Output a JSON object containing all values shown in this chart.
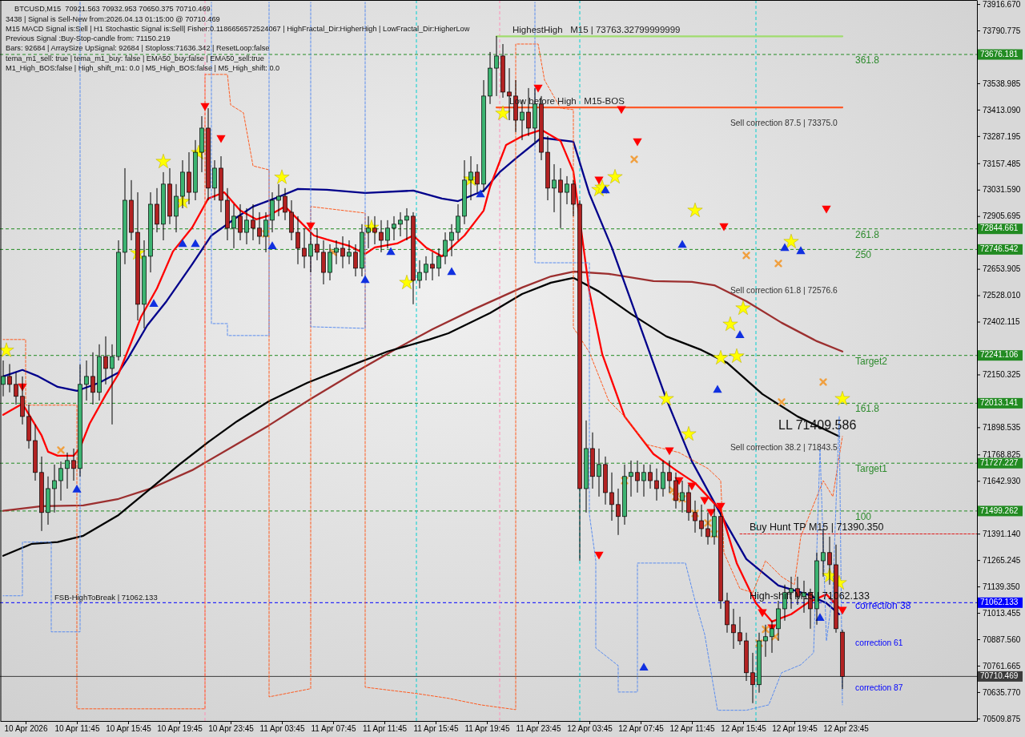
{
  "chart_data": {
    "type": "candlestick",
    "title": "BTCUSD,M15  70921.563 70932.953 70650.375 70710.469",
    "annotations": [
      "3438 | Signal is Sell-New from:2026.04.13 01:15:00 @ 70710.469",
      "M15 MACD Signal is:Sell | H1 Stochastic Signal is:Sell| Fisher:0.1186656572524067 | HighFractal_Dir:HigherHigh | LowFractal_Dir:HigherLow",
      "Previous Signal :Buy-Stop-candle from: 71150.219",
      "Bars: 92684 | ArraySize UpSignal: 92684 | Stoploss:71636.342 | ResetLoop:false",
      "tema_m1_sell: true | tema_m1_buy: false | EMA50_buy:false | EMA50_sell:true",
      "M1_High_BOS:false | High_shift_m1: 0.0 | M5_High_BOS:false | M5_High_shift: 0.0",
      {
        "text": "HighestHigh   M15 | 73763.32799999999",
        "x": "2026-04-11T21:45",
        "y": 73763
      },
      {
        "text": "Low before High   M15-BOS",
        "x": "2026-04-11T21:30",
        "y": 73424
      },
      "Sell correction 87.5 | 73375.0",
      "Sell correction 61.8 | 72576.6",
      "Sell correction 38.2 | 71843.5",
      "LL 71409.586",
      {
        "text": "Buy Hunt TP M15 | 71390.350",
        "x": "2026-04-12T16:15",
        "y": 71390
      },
      {
        "text": "High-shift M15 | 71062.133",
        "x": "2026-04-12T16:15",
        "y": 71062.133
      },
      {
        "text": "FSB-HighToBreak | 71062.133",
        "x": "2026-04-10T10:00",
        "y": 71062.133
      },
      "correction 61",
      "correction 87",
      {
        "text": "361.8",
        "x": "2026-04-13T00:30",
        "y": 73676.181
      },
      {
        "text": "261.8",
        "x": "2026-04-13T00:30",
        "y": 72844.661
      },
      {
        "text": "250",
        "x": "2026-04-13T00:30",
        "y": 72746.542
      },
      {
        "text": "Target2",
        "x": "2026-04-13T00:30",
        "y": 72241.106
      },
      {
        "text": "161.8",
        "x": "2026-04-13T00:30",
        "y": 72013.141
      },
      {
        "text": "Target1",
        "x": "2026-04-13T00:30",
        "y": 71727.227
      },
      {
        "text": "100",
        "x": "2026-04-13T00:30",
        "y": 71499.262
      },
      {
        "text": "correction 38",
        "x": "2026-04-13T00:30",
        "y": 71062.133
      }
    ],
    "x": [
      "2026-04-10T06:00",
      "2026-04-10T06:30",
      "2026-04-10T07:00",
      "2026-04-10T07:30",
      "2026-04-10T08:00",
      "2026-04-10T08:30",
      "2026-04-10T09:00",
      "2026-04-10T09:30",
      "2026-04-10T10:00",
      "2026-04-10T10:30",
      "2026-04-10T11:00",
      "2026-04-10T11:30",
      "2026-04-10T12:00",
      "2026-04-10T12:30",
      "2026-04-10T13:00",
      "2026-04-10T13:30",
      "2026-04-10T14:00",
      "2026-04-10T14:30",
      "2026-04-10T15:00",
      "2026-04-10T15:30",
      "2026-04-10T16:00",
      "2026-04-10T16:30",
      "2026-04-10T17:00",
      "2026-04-10T17:30",
      "2026-04-10T18:00",
      "2026-04-10T18:30",
      "2026-04-10T19:00",
      "2026-04-10T19:30",
      "2026-04-10T20:00",
      "2026-04-10T20:30",
      "2026-04-10T21:00",
      "2026-04-10T21:30",
      "2026-04-10T22:00",
      "2026-04-10T22:30",
      "2026-04-10T23:00",
      "2026-04-10T23:30",
      "2026-04-11T00:00",
      "2026-04-11T00:30",
      "2026-04-11T01:00",
      "2026-04-11T01:30",
      "2026-04-11T02:00",
      "2026-04-11T02:30",
      "2026-04-11T03:00",
      "2026-04-11T03:30",
      "2026-04-11T04:00",
      "2026-04-11T04:30",
      "2026-04-11T05:00",
      "2026-04-11T05:30",
      "2026-04-11T06:00",
      "2026-04-11T06:30",
      "2026-04-11T07:00",
      "2026-04-11T07:30",
      "2026-04-11T08:00",
      "2026-04-11T08:30",
      "2026-04-11T09:00",
      "2026-04-11T09:30",
      "2026-04-11T10:00",
      "2026-04-11T10:30",
      "2026-04-11T11:00",
      "2026-04-11T11:30",
      "2026-04-11T12:00",
      "2026-04-11T12:30",
      "2026-04-11T13:00",
      "2026-04-11T13:30",
      "2026-04-11T14:00",
      "2026-04-11T14:30",
      "2026-04-11T15:00",
      "2026-04-11T15:30",
      "2026-04-11T16:00",
      "2026-04-11T16:30",
      "2026-04-11T17:00",
      "2026-04-11T17:30",
      "2026-04-11T18:00",
      "2026-04-11T18:30",
      "2026-04-11T19:00",
      "2026-04-11T19:30",
      "2026-04-11T20:00",
      "2026-04-11T20:30",
      "2026-04-11T21:00",
      "2026-04-11T21:30",
      "2026-04-11T22:00",
      "2026-04-11T22:30",
      "2026-04-11T23:00",
      "2026-04-11T23:30",
      "2026-04-12T00:00",
      "2026-04-12T00:30",
      "2026-04-12T01:00",
      "2026-04-12T01:30",
      "2026-04-12T02:00",
      "2026-04-12T02:30",
      "2026-04-12T03:00",
      "2026-04-12T03:30",
      "2026-04-12T04:00",
      "2026-04-12T04:30",
      "2026-04-12T05:00",
      "2026-04-12T05:30",
      "2026-04-12T06:00",
      "2026-04-12T06:30",
      "2026-04-12T07:00",
      "2026-04-12T07:30",
      "2026-04-12T08:00",
      "2026-04-12T08:30",
      "2026-04-12T09:00",
      "2026-04-12T09:30",
      "2026-04-12T10:00",
      "2026-04-12T10:30",
      "2026-04-12T11:00",
      "2026-04-12T11:30",
      "2026-04-12T12:00",
      "2026-04-12T12:30",
      "2026-04-12T13:00",
      "2026-04-12T13:30",
      "2026-04-12T14:00",
      "2026-04-12T14:30",
      "2026-04-12T15:00",
      "2026-04-12T15:30",
      "2026-04-12T16:00",
      "2026-04-12T16:30",
      "2026-04-12T17:00",
      "2026-04-12T17:30",
      "2026-04-12T18:00",
      "2026-04-12T18:30",
      "2026-04-12T19:00",
      "2026-04-12T19:30",
      "2026-04-12T20:00",
      "2026-04-12T20:30",
      "2026-04-12T21:00",
      "2026-04-12T21:30",
      "2026-04-12T22:00",
      "2026-04-12T22:30",
      "2026-04-12T23:00",
      "2026-04-12T23:30"
    ],
    "ohlc": [
      [
        72103,
        72217,
        72046,
        72141
      ],
      [
        72141,
        72200,
        72065,
        72103
      ],
      [
        72103,
        72160,
        72007,
        72046
      ],
      [
        72046,
        72141,
        71912,
        71950
      ],
      [
        71950,
        72007,
        71797,
        71835
      ],
      [
        71835,
        71912,
        71644,
        71683
      ],
      [
        71683,
        71759,
        71404,
        71492
      ],
      [
        71492,
        71664,
        71434,
        71606
      ],
      [
        71606,
        71721,
        71492,
        71644
      ],
      [
        71644,
        71735,
        71549,
        71702
      ],
      [
        71702,
        71778,
        71606,
        71740
      ],
      [
        71740,
        71797,
        71644,
        71702
      ],
      [
        71702,
        72198,
        71664,
        72103
      ],
      [
        72103,
        72217,
        72026,
        72141
      ],
      [
        72141,
        72256,
        72007,
        72065
      ],
      [
        72065,
        72294,
        72026,
        72236
      ],
      [
        72236,
        72332,
        72103,
        72179
      ],
      [
        72179,
        72294,
        71912,
        72236
      ],
      [
        72236,
        72790,
        72217,
        72733
      ],
      [
        72733,
        73134,
        72676,
        72981
      ],
      [
        72981,
        73077,
        72790,
        72828
      ],
      [
        72828,
        73019,
        72408,
        72485
      ],
      [
        72485,
        72790,
        72370,
        72714
      ],
      [
        72714,
        73019,
        72637,
        72962
      ],
      [
        72962,
        73039,
        72828,
        72867
      ],
      [
        72867,
        73115,
        72790,
        73058
      ],
      [
        73058,
        73134,
        72867,
        72905
      ],
      [
        72905,
        73058,
        72828,
        73000
      ],
      [
        73000,
        73172,
        72943,
        73115
      ],
      [
        73115,
        73210,
        72962,
        73019
      ],
      [
        73019,
        73268,
        72981,
        73210
      ],
      [
        73210,
        73382,
        73115,
        73325
      ],
      [
        73325,
        73420,
        72981,
        73039
      ],
      [
        73039,
        73172,
        72981,
        73134
      ],
      [
        73134,
        73191,
        72924,
        72981
      ],
      [
        72981,
        73039,
        72790,
        72848
      ],
      [
        72848,
        72962,
        72752,
        72905
      ],
      [
        72905,
        72962,
        72790,
        72828
      ],
      [
        72828,
        72943,
        72771,
        72886
      ],
      [
        72886,
        72962,
        72790,
        72848
      ],
      [
        72848,
        72924,
        72771,
        72809
      ],
      [
        72809,
        72924,
        72733,
        72886
      ],
      [
        72886,
        73019,
        72828,
        72981
      ],
      [
        72981,
        73058,
        72905,
        73000
      ],
      [
        73000,
        73039,
        72886,
        72924
      ],
      [
        72924,
        72981,
        72790,
        72828
      ],
      [
        72828,
        72905,
        72676,
        72752
      ],
      [
        72752,
        72848,
        72657,
        72714
      ],
      [
        72714,
        72828,
        72637,
        72771
      ],
      [
        72771,
        72848,
        72695,
        72733
      ],
      [
        72733,
        72790,
        72580,
        72637
      ],
      [
        72637,
        72771,
        72599,
        72733
      ],
      [
        72733,
        72790,
        72676,
        72752
      ],
      [
        72752,
        72809,
        72657,
        72714
      ],
      [
        72714,
        72790,
        72676,
        72733
      ],
      [
        72733,
        72771,
        72618,
        72657
      ],
      [
        72657,
        72867,
        72618,
        72828
      ],
      [
        72828,
        72905,
        72752,
        72848
      ],
      [
        72848,
        72905,
        72771,
        72828
      ],
      [
        72828,
        72886,
        72733,
        72790
      ],
      [
        72790,
        72886,
        72752,
        72848
      ],
      [
        72848,
        72905,
        72790,
        72867
      ],
      [
        72867,
        72924,
        72809,
        72886
      ],
      [
        72886,
        72943,
        72790,
        72905
      ],
      [
        72905,
        72924,
        72485,
        72599
      ],
      [
        72599,
        72695,
        72561,
        72637
      ],
      [
        72637,
        72714,
        72599,
        72676
      ],
      [
        72676,
        72733,
        72599,
        72657
      ],
      [
        72657,
        72752,
        72618,
        72714
      ],
      [
        72714,
        72828,
        72676,
        72790
      ],
      [
        72790,
        72867,
        72714,
        72828
      ],
      [
        72828,
        72962,
        72790,
        72905
      ],
      [
        72905,
        73172,
        72867,
        73077
      ],
      [
        73077,
        73191,
        72981,
        73115
      ],
      [
        73115,
        73153,
        73019,
        73058
      ],
      [
        73058,
        73554,
        73019,
        73478
      ],
      [
        73478,
        73688,
        73440,
        73611
      ],
      [
        73611,
        73764,
        73478,
        73669
      ],
      [
        73669,
        73726,
        73470,
        73497
      ],
      [
        73497,
        73611,
        73363,
        73478
      ],
      [
        73478,
        73554,
        73306,
        73363
      ],
      [
        73363,
        73459,
        73268,
        73401
      ],
      [
        73401,
        73516,
        73287,
        73325
      ],
      [
        73325,
        73516,
        73249,
        73440
      ],
      [
        73440,
        73478,
        73172,
        73210
      ],
      [
        73210,
        73287,
        72981,
        73039
      ],
      [
        73039,
        73153,
        72924,
        73077
      ],
      [
        73077,
        73134,
        72848,
        73019
      ],
      [
        73019,
        73096,
        72962,
        73058
      ],
      [
        73058,
        73077,
        72905,
        72962
      ],
      [
        72962,
        72981,
        71262,
        71606
      ],
      [
        71606,
        71931,
        71492,
        71797
      ],
      [
        71797,
        71874,
        71606,
        71664
      ],
      [
        71664,
        71797,
        71568,
        71721
      ],
      [
        71721,
        71759,
        71530,
        71587
      ],
      [
        71587,
        71683,
        71453,
        71530
      ],
      [
        71530,
        71606,
        71385,
        71473
      ],
      [
        71473,
        71721,
        71434,
        71664
      ],
      [
        71664,
        71740,
        71568,
        71683
      ],
      [
        71683,
        71740,
        71587,
        71644
      ],
      [
        71644,
        71721,
        71568,
        71683
      ],
      [
        71683,
        71721,
        71606,
        71644
      ],
      [
        71644,
        71702,
        71549,
        71606
      ],
      [
        71606,
        71740,
        71568,
        71683
      ],
      [
        71683,
        71740,
        71587,
        71644
      ],
      [
        71644,
        71683,
        71511,
        71549
      ],
      [
        71549,
        71644,
        71492,
        71587
      ],
      [
        71587,
        71625,
        71453,
        71492
      ],
      [
        71492,
        71549,
        71396,
        71453
      ],
      [
        71453,
        71530,
        71377,
        71415
      ],
      [
        71415,
        71492,
        71339,
        71377
      ],
      [
        71377,
        71530,
        71339,
        71473
      ],
      [
        71473,
        71492,
        71033,
        71071
      ],
      [
        71071,
        71110,
        70919,
        70957
      ],
      [
        70957,
        71033,
        70842,
        70919
      ],
      [
        70919,
        70995,
        70861,
        70880
      ],
      [
        70880,
        70919,
        70689,
        70728
      ],
      [
        70728,
        70823,
        70583,
        70671
      ],
      [
        70671,
        70919,
        70633,
        70880
      ],
      [
        70880,
        70957,
        70804,
        70900
      ],
      [
        70900,
        70976,
        70823,
        70938
      ],
      [
        70938,
        71071,
        70880,
        71033
      ],
      [
        71033,
        71148,
        70976,
        71110
      ],
      [
        71110,
        71186,
        71033,
        71129
      ],
      [
        71129,
        71186,
        71052,
        71091
      ],
      [
        71091,
        71167,
        71014,
        71110
      ],
      [
        71110,
        71129,
        70938,
        71033
      ],
      [
        71033,
        71301,
        70957,
        71262
      ],
      [
        71262,
        71415,
        71186,
        71301
      ],
      [
        71301,
        71377,
        71148,
        71243
      ],
      [
        71243,
        71339,
        70919,
        70938
      ],
      [
        70921.563,
        70932.953,
        70650.375,
        70710.469
      ]
    ],
    "colors": [
      "#3cb371",
      "#b22222",
      "#b22222",
      "#b22222",
      "#b22222",
      "#b22222",
      "#b22222",
      "#3cb371",
      "#3cb371",
      "#3cb371",
      "#3cb371",
      "#b22222",
      "#3cb371",
      "#3cb371",
      "#b22222",
      "#3cb371",
      "#b22222",
      "#3cb371",
      "#3cb371",
      "#3cb371",
      "#b22222",
      "#b22222",
      "#3cb371",
      "#3cb371",
      "#b22222",
      "#3cb371",
      "#b22222",
      "#3cb371",
      "#3cb371",
      "#b22222",
      "#3cb371",
      "#3cb371",
      "#b22222",
      "#3cb371",
      "#b22222",
      "#b22222",
      "#3cb371",
      "#b22222",
      "#3cb371",
      "#b22222",
      "#b22222",
      "#3cb371",
      "#3cb371",
      "#3cb371",
      "#b22222",
      "#b22222",
      "#b22222",
      "#b22222",
      "#3cb371",
      "#b22222",
      "#b22222",
      "#3cb371",
      "#3cb371",
      "#b22222",
      "#3cb371",
      "#b22222",
      "#3cb371",
      "#3cb371",
      "#b22222",
      "#b22222",
      "#3cb371",
      "#3cb371",
      "#3cb371",
      "#3cb371",
      "#b22222",
      "#3cb371",
      "#3cb371",
      "#b22222",
      "#3cb371",
      "#3cb371",
      "#3cb371",
      "#3cb371",
      "#3cb371",
      "#3cb371",
      "#b22222",
      "#3cb371",
      "#3cb371",
      "#3cb371",
      "#b22222",
      "#b22222",
      "#b22222",
      "#3cb371",
      "#b22222",
      "#3cb371",
      "#b22222",
      "#b22222",
      "#3cb371",
      "#b22222",
      "#3cb371",
      "#b22222",
      "#b22222",
      "#3cb371",
      "#b22222",
      "#3cb371",
      "#b22222",
      "#b22222",
      "#b22222",
      "#3cb371",
      "#3cb371",
      "#b22222",
      "#3cb371",
      "#b22222",
      "#b22222",
      "#3cb371",
      "#b22222",
      "#b22222",
      "#3cb371",
      "#b22222",
      "#b22222",
      "#b22222",
      "#b22222",
      "#3cb371",
      "#b22222",
      "#b22222",
      "#b22222",
      "#b22222",
      "#b22222",
      "#b22222",
      "#3cb371",
      "#3cb371",
      "#3cb371",
      "#3cb371",
      "#3cb371",
      "#3cb371",
      "#b22222",
      "#3cb371",
      "#b22222",
      "#3cb371",
      "#3cb371",
      "#b22222",
      "#b22222",
      "#b22222"
    ],
    "series": [
      {
        "type": "line",
        "color": "#9c2f2f",
        "line_style": "solid",
        "x": [
          "2026-04-10T06:00",
          "2026-04-10T09:00",
          "2026-04-10T12:15",
          "2026-04-10T15:00",
          "2026-04-10T17:30",
          "2026-04-10T20:45",
          "2026-04-10T23:45",
          "2026-04-11T02:45",
          "2026-04-11T06:00",
          "2026-04-11T09:15",
          "2026-04-11T12:30",
          "2026-04-11T15:30",
          "2026-04-11T18:45",
          "2026-04-11T22:30",
          "2026-04-12T00:45",
          "2026-04-12T02:30",
          "2026-04-12T05:15",
          "2026-04-12T08:45",
          "2026-04-12T11:45",
          "2026-04-12T13:30",
          "2026-04-12T16:00",
          "2026-04-12T18:45",
          "2026-04-12T21:30",
          "2026-04-12T23:30"
        ],
        "values": [
          71500,
          71522,
          71526,
          71557,
          71606,
          71694,
          71801,
          71908,
          72034,
          72153,
          72267,
          72366,
          72462,
          72565,
          72618,
          72641,
          72630,
          72596,
          72592,
          72576,
          72500,
          72397,
          72309,
          72260
        ]
      },
      {
        "type": "line",
        "color": "#000000",
        "line_style": "solid",
        "x": [
          "2026-04-10T06:00",
          "2026-04-10T08:15",
          "2026-04-10T10:15",
          "2026-04-10T12:15",
          "2026-04-10T15:00",
          "2026-04-10T17:30",
          "2026-04-10T19:45",
          "2026-04-10T22:00",
          "2026-04-11T00:15",
          "2026-04-11T02:45",
          "2026-04-11T05:45",
          "2026-04-11T09:00",
          "2026-04-11T12:00",
          "2026-04-11T15:15",
          "2026-04-11T16:45",
          "2026-04-11T20:00",
          "2026-04-11T22:30",
          "2026-04-12T00:45",
          "2026-04-12T02:30",
          "2026-04-12T04:30",
          "2026-04-12T07:00",
          "2026-04-12T09:45",
          "2026-04-12T12:30",
          "2026-04-12T14:30",
          "2026-04-12T17:15",
          "2026-04-12T20:00",
          "2026-04-12T23:15"
        ],
        "values": [
          71286,
          71343,
          71351,
          71381,
          71480,
          71606,
          71721,
          71828,
          71927,
          72023,
          72111,
          72190,
          72260,
          72317,
          72347,
          72443,
          72534,
          72588,
          72611,
          72546,
          72439,
          72332,
          72267,
          72206,
          72057,
          71950,
          71855
        ]
      },
      {
        "type": "line",
        "color": "#00008b",
        "line_style": "solid",
        "x": [
          "2026-04-10T06:00",
          "2026-04-10T07:30",
          "2026-04-10T08:45",
          "2026-04-10T10:15",
          "2026-04-10T11:45",
          "2026-04-10T13:30",
          "2026-04-10T15:00",
          "2026-04-10T15:45",
          "2026-04-10T17:15",
          "2026-04-10T18:45",
          "2026-04-10T20:45",
          "2026-04-10T22:15",
          "2026-04-11T00:00",
          "2026-04-11T01:30",
          "2026-04-11T03:30",
          "2026-04-11T05:00",
          "2026-04-11T07:15",
          "2026-04-11T10:15",
          "2026-04-11T14:00",
          "2026-04-11T16:15",
          "2026-04-11T17:30",
          "2026-04-11T19:30",
          "2026-04-11T20:45",
          "2026-04-11T22:00",
          "2026-04-12T00:00",
          "2026-04-12T02:30",
          "2026-04-12T03:45",
          "2026-04-12T05:30",
          "2026-04-12T07:45",
          "2026-04-12T09:45",
          "2026-04-12T11:45",
          "2026-04-12T14:00",
          "2026-04-12T16:00",
          "2026-04-12T18:30",
          "2026-04-12T20:45",
          "2026-04-12T22:15",
          "2026-04-12T23:15"
        ],
        "values": [
          72141,
          72172,
          72141,
          72091,
          72072,
          72111,
          72160,
          72229,
          72385,
          72500,
          72676,
          72813,
          72890,
          72951,
          72997,
          73035,
          73031,
          73016,
          73027,
          72989,
          72977,
          73027,
          73115,
          73180,
          73279,
          73260,
          73012,
          72756,
          72374,
          72034,
          71736,
          71484,
          71270,
          71144,
          71102,
          71060,
          71007
        ]
      },
      {
        "type": "line",
        "color": "#ff0000",
        "line_style": "solid",
        "x": [
          "2026-04-10T06:00",
          "2026-04-10T07:30",
          "2026-04-10T08:15",
          "2026-04-10T09:00",
          "2026-04-10T09:30",
          "2026-04-10T10:15",
          "2026-04-10T11:30",
          "2026-04-10T12:00",
          "2026-04-10T12:45",
          "2026-04-10T14:00",
          "2026-04-10T15:00",
          "2026-04-10T16:00",
          "2026-04-10T16:45",
          "2026-04-10T18:00",
          "2026-04-10T19:15",
          "2026-04-10T20:45",
          "2026-04-10T22:00",
          "2026-04-10T23:15",
          "2026-04-11T00:30",
          "2026-04-11T01:45",
          "2026-04-11T02:45",
          "2026-04-11T04:00",
          "2026-04-11T05:00",
          "2026-04-11T06:15",
          "2026-04-11T07:15",
          "2026-04-11T09:00",
          "2026-04-11T10:15",
          "2026-04-11T11:00",
          "2026-04-11T12:45",
          "2026-04-11T14:00",
          "2026-04-11T15:00",
          "2026-04-11T16:15",
          "2026-04-11T18:00",
          "2026-04-11T19:30",
          "2026-04-11T20:00",
          "2026-04-11T21:15",
          "2026-04-11T22:30",
          "2026-04-12T00:00",
          "2026-04-12T01:30",
          "2026-04-12T02:30",
          "2026-04-12T03:45",
          "2026-04-12T04:45",
          "2026-04-12T06:30",
          "2026-04-12T08:45",
          "2026-04-12T10:30",
          "2026-04-12T12:00",
          "2026-04-12T14:00",
          "2026-04-12T15:15",
          "2026-04-12T16:45",
          "2026-04-12T18:00",
          "2026-04-12T19:30",
          "2026-04-12T20:45",
          "2026-04-12T22:15",
          "2026-04-12T23:15"
        ],
        "values": [
          71958,
          72011,
          71935,
          71859,
          71782,
          71763,
          71763,
          71801,
          71916,
          72053,
          72153,
          72305,
          72424,
          72561,
          72737,
          72851,
          72989,
          73019,
          72932,
          72890,
          72909,
          72951,
          72890,
          72813,
          72794,
          72764,
          72725,
          72756,
          72775,
          72813,
          72756,
          72714,
          72813,
          72932,
          73046,
          73245,
          73287,
          73317,
          73264,
          73119,
          72546,
          72248,
          71950,
          71771,
          71694,
          71633,
          71503,
          71251,
          71060,
          70972,
          71007,
          71060,
          71102,
          71037
        ]
      },
      {
        "type": "line",
        "color": "#ff5a1f",
        "line_style": "dashed",
        "x": [
          "2026-04-10T06:00",
          "2026-04-10T07:45",
          "2026-04-10T07:45",
          "2026-04-10T11:45",
          "2026-04-10T11:45",
          "2026-04-10T21:45",
          "2026-04-10T21:45",
          "2026-04-10T23:30",
          "2026-04-10T23:45",
          "2026-04-11T00:45",
          "2026-04-11T01:30",
          "2026-04-11T02:45",
          "2026-04-11T02:45",
          "2026-04-11T06:00",
          "2026-04-11T06:00",
          "2026-04-11T10:15",
          "2026-04-11T10:15",
          "2026-04-11T14:15",
          "2026-04-11T16:45",
          "2026-04-11T19:15",
          "2026-04-11T22:00",
          "2026-04-11T22:00",
          "2026-04-11T23:45",
          "2026-04-12T00:15",
          "2026-04-12T01:30",
          "2026-04-12T02:30",
          "2026-04-12T02:30",
          "2026-04-12T03:45",
          "2026-04-12T05:15",
          "2026-04-12T06:30",
          "2026-04-12T08:15",
          "2026-04-12T10:45",
          "2026-04-12T13:00",
          "2026-04-12T14:00",
          "2026-04-12T14:15",
          "2026-04-12T15:30",
          "2026-04-12T16:30",
          "2026-04-12T17:30",
          "2026-04-12T18:45",
          "2026-04-12T19:45",
          "2026-04-12T20:15",
          "2026-04-12T22:00",
          "2026-04-12T22:45",
          "2026-04-12T23:30"
        ],
        "values": [
          72317,
          72317,
          72004,
          72004,
          70556,
          70556,
          73581,
          73581,
          73436,
          73398,
          73145,
          73126,
          70613,
          70652,
          72951,
          72920,
          70659,
          70629,
          70606,
          70575,
          70552,
          73726,
          73726,
          73554,
          73420,
          73413,
          72374,
          72256,
          72026,
          71950,
          71816,
          71778,
          71702,
          71644,
          71301,
          71129,
          71110,
          71262,
          71186,
          71148,
          71377,
          71644,
          71568,
          71855
        ]
      },
      {
        "type": "line",
        "color": "#5b8def",
        "line_style": "dashed",
        "x": [
          "2026-04-10T06:00",
          "2026-04-10T07:30",
          "2026-04-10T07:30",
          "2026-04-10T09:45",
          "2026-04-10T09:45",
          "2026-04-10T12:00",
          "2026-04-10T12:00",
          "2026-04-10T17:00",
          "2026-04-10T22:15",
          "2026-04-10T22:15",
          "2026-04-10T23:30",
          "2026-04-10T23:30",
          "2026-04-11T02:45",
          "2026-04-11T02:45",
          "2026-04-11T04:30",
          "2026-04-11T06:00",
          "2026-04-11T06:00",
          "2026-04-11T10:15",
          "2026-04-11T10:15",
          "2026-04-11T16:00",
          "2026-04-11T23:30",
          "2026-04-11T23:30",
          "2026-04-12T03:45",
          "2026-04-12T03:45",
          "2026-04-12T04:15",
          "2026-04-12T04:15",
          "2026-04-12T06:00",
          "2026-04-12T06:00",
          "2026-04-12T07:30",
          "2026-04-12T07:30",
          "2026-04-12T11:15",
          "2026-04-12T12:00",
          "2026-04-12T12:45",
          "2026-04-12T13:45",
          "2026-04-12T16:00",
          "2026-04-12T17:45",
          "2026-04-12T18:45",
          "2026-04-12T20:15",
          "2026-04-12T21:15",
          "2026-04-12T21:45",
          "2026-04-12T22:15",
          "2026-04-12T22:45",
          "2026-04-12T23:15",
          "2026-04-12T23:30"
        ],
        "values": [
          71095,
          71095,
          71351,
          71351,
          70923,
          70923,
          73925,
          null,
          73925,
          72393,
          72393,
          72336,
          72336,
          73925,
          null,
          73925,
          72378,
          72370,
          73925,
          null,
          73925,
          72683,
          72683,
          71484,
          71262,
          70846,
          70762,
          70636,
          70636,
          71251,
          71251,
          71071,
          70911,
          70549,
          70549,
          70575,
          70728,
          70766,
          70823,
          71797,
          70880,
          71110,
          71950,
          70575
        ]
      },
      {
        "type": "line",
        "color": "#a0dc6e",
        "line_style": "solid",
        "x": [
          "2026-04-11T20:30",
          "2026-04-12T23:30"
        ],
        "values": [
          73763,
          73763
        ]
      },
      {
        "type": "line",
        "color": "#ff5a2a",
        "line_style": "solid",
        "x": [
          "2026-04-11T20:30",
          "2026-04-12T23:30"
        ],
        "values": [
          73424,
          73424
        ]
      },
      {
        "type": "line",
        "color": "#e02020",
        "line_style": "dashed",
        "x": [
          "2026-04-12T15:30",
          "2026-04-13T10:00"
        ],
        "values": [
          71390,
          71390
        ]
      },
      {
        "type": "scatter",
        "color": "#ffff00",
        "marker": "star",
        "x": [
          "2026-04-10T06:15",
          "2026-04-10T16:30",
          "2026-04-10T18:30",
          "2026-04-10T20:00",
          "2026-04-10T21:15",
          "2026-04-11T03:45",
          "2026-04-11T10:45",
          "2026-04-11T13:30",
          "2026-04-11T18:30",
          "2026-04-11T21:00",
          "2026-04-12T04:30",
          "2026-04-12T04:45",
          "2026-04-12T05:45",
          "2026-04-12T09:45",
          "2026-04-12T11:30",
          "2026-04-12T12:00",
          "2026-04-12T14:00",
          "2026-04-12T14:45",
          "2026-04-12T15:15",
          "2026-04-12T15:45",
          "2026-04-12T19:30",
          "2026-04-12T22:30",
          "2026-04-12T23:15",
          "2026-04-12T23:30"
        ],
        "values": [
          72265,
          72729,
          73165,
          72974,
          73207,
          73090,
          72851,
          72588,
          73081,
          73395,
          73031,
          73042,
          73092,
          72034,
          71866,
          72932,
          72229,
          72389,
          72237,
          72466,
          72783,
          71190,
          71156,
          72034
        ]
      },
      {
        "type": "scatter",
        "color": "#1030e0",
        "marker": "triangle",
        "x": [
          "2026-04-10T11:45",
          "2026-04-10T17:45",
          "2026-04-10T20:00",
          "2026-04-10T21:00",
          "2026-04-11T03:00",
          "2026-04-11T10:15",
          "2026-04-11T12:15",
          "2026-04-11T17:00",
          "2026-04-11T19:15",
          "2026-04-12T05:00",
          "2026-04-12T08:00",
          "2026-04-12T11:00",
          "2026-04-12T13:45",
          "2026-04-12T15:30",
          "2026-04-12T19:00",
          "2026-04-12T20:15",
          "2026-04-12T21:45"
        ],
        "values": [
          71600,
          72485,
          72771,
          72771,
          72760,
          72599,
          72733,
          72637,
          73008,
          73027,
          70751,
          72767,
          72076,
          72336,
          72752,
          72737,
          70988
        ]
      },
      {
        "type": "scatter",
        "color": "#ff0000",
        "marker": "triangle",
        "x": [
          "2026-04-10T07:30",
          "2026-04-10T21:45",
          "2026-04-10T23:00",
          "2026-04-11T06:00",
          "2026-04-11T23:45",
          "2026-04-12T04:30",
          "2026-04-12T04:30",
          "2026-04-12T06:15",
          "2026-04-12T07:30",
          "2026-04-12T10:00",
          "2026-04-12T10:45",
          "2026-04-12T11:45",
          "2026-04-12T12:45",
          "2026-04-12T13:15",
          "2026-04-12T14:00",
          "2026-04-12T14:15",
          "2026-04-12T17:15",
          "2026-04-12T18:00",
          "2026-04-12T22:15",
          "2026-04-12T23:30"
        ],
        "values": [
          72095,
          73432,
          73279,
          72863,
          73520,
          73081,
          71293,
          73417,
          73264,
          71790,
          71648,
          71622,
          71553,
          71496,
          71526,
          72859,
          71018,
          70946,
          72943,
          71030
        ]
      },
      {
        "type": "scatter",
        "color": "#f0a040",
        "marker": "cross",
        "x": [
          "2026-04-10T10:30",
          "2026-04-11T02:30",
          "2026-04-11T07:45",
          "2026-04-12T06:30",
          "2026-04-12T07:15",
          "2026-04-12T10:15",
          "2026-04-12T10:30",
          "2026-04-12T11:00",
          "2026-04-12T12:00",
          "2026-04-12T13:00",
          "2026-04-12T13:30",
          "2026-04-12T16:00",
          "2026-04-12T17:00",
          "2026-04-12T17:30",
          "2026-04-12T18:15",
          "2026-04-12T18:30",
          "2026-04-12T18:45",
          "2026-04-12T22:00"
        ],
        "values": [
          71790,
          72821,
          72733,
          71644,
          73176,
          71599,
          71568,
          71557,
          71488,
          71442,
          71389,
          72718,
          70869,
          70935,
          70900,
          72680,
          72019,
          72114
        ]
      }
    ],
    "xlim": [
      "2026-04-10T05:45",
      "2026-04-13T10:00"
    ],
    "xticks": [
      {
        "value": "2026-04-10T07:45",
        "label": "10 Apr 2026"
      },
      {
        "value": "2026-04-10T11:45",
        "label": "10 Apr 11:45"
      },
      {
        "value": "2026-04-10T15:45",
        "label": "10 Apr 15:45"
      },
      {
        "value": "2026-04-10T19:45",
        "label": "10 Apr 19:45"
      },
      {
        "value": "2026-04-10T23:45",
        "label": "10 Apr 23:45"
      },
      {
        "value": "2026-04-11T03:45",
        "label": "11 Apr 03:45"
      },
      {
        "value": "2026-04-11T07:45",
        "label": "11 Apr 07:45"
      },
      {
        "value": "2026-04-11T11:45",
        "label": "11 Apr 11:45"
      },
      {
        "value": "2026-04-11T15:45",
        "label": "11 Apr 15:45"
      },
      {
        "value": "2026-04-11T19:45",
        "label": "11 Apr 19:45"
      },
      {
        "value": "2026-04-11T23:45",
        "label": "11 Apr 23:45"
      },
      {
        "value": "2026-04-12T03:45",
        "label": "12 Apr 03:45"
      },
      {
        "value": "2026-04-12T07:45",
        "label": "12 Apr 07:45"
      },
      {
        "value": "2026-04-12T11:45",
        "label": "12 Apr 11:45"
      },
      {
        "value": "2026-04-12T15:45",
        "label": "12 Apr 15:45"
      },
      {
        "value": "2026-04-12T19:45",
        "label": "12 Apr 19:45"
      },
      {
        "value": "2026-04-12T23:45",
        "label": "12 Apr 23:45"
      }
    ],
    "ylim": [
      70498,
      73936
    ],
    "yticks": [
      {
        "value": 73916.67,
        "label": "73916.670"
      },
      73790.775,
      73538.985,
      {
        "value": 73413.09,
        "label": "73413.090"
      },
      73287.195,
      73157.485,
      {
        "value": 73031.59,
        "label": "73031.590"
      },
      72905.695,
      72653.905,
      {
        "value": 72528.01,
        "label": "72528.010"
      },
      72402.115,
      72150.325,
      71898.535,
      71768.825,
      {
        "value": 71642.93,
        "label": "71642.930"
      },
      {
        "value": 71391.14,
        "label": "71391.140"
      },
      71265.245,
      {
        "value": 71139.35,
        "label": "71139.350"
      },
      71013.455,
      {
        "value": 70887.56,
        "label": "70887.560"
      },
      70761.665,
      {
        "value": 70635.77,
        "label": "70635.770"
      },
      70509.875
    ],
    "ref_lines": [
      {
        "axis": "y",
        "value": 73676.181,
        "label": "73676.181",
        "color": "#228b22",
        "line_style": "dashed"
      },
      {
        "axis": "y",
        "value": 72844.661,
        "label": "72844.661",
        "color": "#228b22",
        "line_style": "dashed"
      },
      {
        "axis": "y",
        "value": 72746.542,
        "label": "72746.542",
        "color": "#228b22",
        "line_style": "dashed"
      },
      {
        "axis": "y",
        "value": 72241.106,
        "label": "72241.106",
        "color": "#228b22",
        "line_style": "dashed"
      },
      {
        "axis": "y",
        "value": 72013.141,
        "label": "72013.141",
        "color": "#228b22",
        "line_style": "dashed"
      },
      {
        "axis": "y",
        "value": 71727.227,
        "label": "71727.227",
        "color": "#228b22",
        "line_style": "dashed"
      },
      {
        "axis": "y",
        "value": 71499.262,
        "label": "71499.262",
        "color": "#228b22",
        "line_style": "dashed"
      },
      {
        "axis": "y",
        "value": 71062.133,
        "label": "71062.133",
        "color": "#0000ff",
        "line_style": "dashed"
      },
      {
        "axis": "y",
        "value": 70710.469,
        "label": "70710.469",
        "color": "#3c3c3c",
        "line_style": "solid"
      },
      {
        "axis": "x",
        "value": "2026-04-10T21:45",
        "color": "#ff8fb8",
        "line_style": "dashed"
      },
      {
        "axis": "x",
        "value": "2026-04-11T14:15",
        "color": "#00d0d0",
        "line_style": "dashed"
      },
      {
        "axis": "x",
        "value": "2026-04-11T20:45",
        "color": "#ff8fb8",
        "line_style": "dashed"
      },
      {
        "axis": "x",
        "value": "2026-04-12T03:00",
        "color": "#00d0d0",
        "line_style": "dashed"
      },
      {
        "axis": "x",
        "value": "2026-04-12T16:45",
        "color": "#00d0d0",
        "line_style": "dashed"
      }
    ]
  }
}
